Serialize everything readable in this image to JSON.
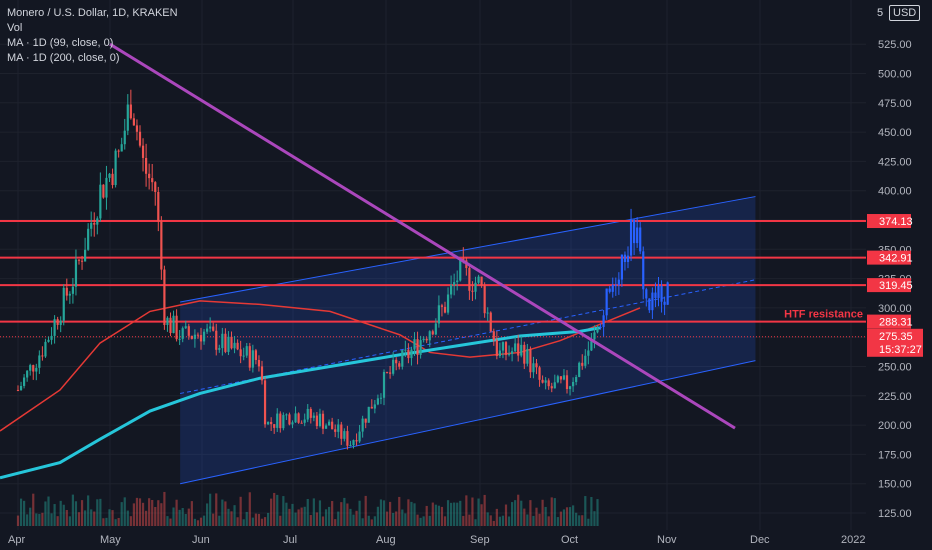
{
  "header": {
    "symbol_line": "Monero / U.S. Dollar, 1D, KRAKEN",
    "indicators": [
      "Vol",
      "MA · 1D (99, close, 0)",
      "MA · 1D (200, close, 0)"
    ]
  },
  "currency_button": "USD",
  "currency_cut_label": "5",
  "colors": {
    "background": "#131722",
    "up": "#26a69a",
    "down": "#ef5350",
    "projection": "#2962ff",
    "trendline": "#ab47bc",
    "ma99": "#e53935",
    "ma200": "#26c6da",
    "horizontal_levels": "#f23645",
    "channel": "#2962ff"
  },
  "chart_data": {
    "type": "candlestick",
    "symbol": "XMRUSD",
    "timeframe": "1D",
    "exchange": "KRAKEN",
    "x_ticks": [
      "Apr",
      "May",
      "Jun",
      "Jul",
      "Aug",
      "Sep",
      "Oct",
      "Nov",
      "Dec",
      "2022"
    ],
    "y_ticks": [
      125,
      150,
      175,
      200,
      225,
      250,
      275,
      300,
      325,
      350,
      375,
      400,
      425,
      450,
      475,
      500,
      525
    ],
    "y_tick_labels": [
      "125.00",
      "150.00",
      "175.00",
      "200.00",
      "225.00",
      "250.00",
      "",
      "300.00",
      "325.00",
      "350.00",
      "",
      "400.00",
      "425.00",
      "450.00",
      "475.00",
      "500.00",
      "525.00"
    ],
    "ylim": [
      112,
      552
    ],
    "price_series_approx": [
      {
        "t": "Apr 01",
        "close": 230
      },
      {
        "t": "Apr 10",
        "close": 270
      },
      {
        "t": "Apr 20",
        "close": 330
      },
      {
        "t": "Apr 28",
        "close": 400
      },
      {
        "t": "May 04",
        "close": 430
      },
      {
        "t": "May 08",
        "close": 480
      },
      {
        "t": "May 12",
        "close": 420
      },
      {
        "t": "May 16",
        "close": 400
      },
      {
        "t": "May 19",
        "close": 290
      },
      {
        "t": "May 25",
        "close": 275
      },
      {
        "t": "Jun 01",
        "close": 280
      },
      {
        "t": "Jun 10",
        "close": 265
      },
      {
        "t": "Jun 20",
        "close": 255
      },
      {
        "t": "Jun 22",
        "close": 200
      },
      {
        "t": "Jul 01",
        "close": 210
      },
      {
        "t": "Jul 10",
        "close": 205
      },
      {
        "t": "Jul 20",
        "close": 185
      },
      {
        "t": "Aug 01",
        "close": 240
      },
      {
        "t": "Aug 10",
        "close": 265
      },
      {
        "t": "Aug 20",
        "close": 300
      },
      {
        "t": "Aug 25",
        "close": 330
      },
      {
        "t": "Sep 01",
        "close": 320
      },
      {
        "t": "Sep 07",
        "close": 260
      },
      {
        "t": "Sep 15",
        "close": 265
      },
      {
        "t": "Sep 22",
        "close": 230
      },
      {
        "t": "Sep 30",
        "close": 235
      },
      {
        "t": "Oct 08",
        "close": 270
      },
      {
        "t": "Oct 12",
        "close": 300
      },
      {
        "t": "Oct 18",
        "close": 345
      },
      {
        "t": "Oct 22",
        "close": 370
      },
      {
        "t": "Oct 26",
        "close": 300
      },
      {
        "t": "Oct 30",
        "close": 310
      },
      {
        "t": "Nov 02",
        "close": 320
      }
    ],
    "projection_start": "Oct 10",
    "moving_averages": [
      {
        "name": "MA · 1D (99, close, 0)",
        "points": [
          [
            0,
            195
          ],
          [
            60,
            230
          ],
          [
            100,
            270
          ],
          [
            150,
            297
          ],
          [
            200,
            306
          ],
          [
            260,
            303
          ],
          [
            330,
            297
          ],
          [
            400,
            277
          ],
          [
            430,
            262
          ],
          [
            470,
            258
          ],
          [
            520,
            262
          ],
          [
            560,
            272
          ],
          [
            640,
            300
          ]
        ]
      },
      {
        "name": "MA · 1D (200, close, 0)",
        "points": [
          [
            0,
            155
          ],
          [
            60,
            168
          ],
          [
            100,
            188
          ],
          [
            150,
            212
          ],
          [
            200,
            227
          ],
          [
            260,
            240
          ],
          [
            330,
            250
          ],
          [
            400,
            260
          ],
          [
            460,
            268
          ],
          [
            520,
            276
          ],
          [
            580,
            280
          ],
          [
            600,
            283
          ]
        ]
      }
    ],
    "horizontal_levels": [
      {
        "value": 374.13,
        "label": "374.13"
      },
      {
        "value": 342.91,
        "label": "342.91"
      },
      {
        "value": 319.45,
        "label": "319.45"
      },
      {
        "value": 288.31,
        "label": "288.31",
        "annotation": "HTF resistance"
      }
    ],
    "price_marker": {
      "price": "275.35",
      "countdown": "15:37:27",
      "color": "#f23645"
    },
    "descending_trendline": {
      "from": {
        "t": "May 01",
        "price": 525
      },
      "to": {
        "t": "Dec 01",
        "price": 200
      }
    },
    "channel": {
      "upper": {
        "from": {
          "t": "May 24",
          "price": 305
        },
        "to": {
          "t": "Nov 30",
          "price": 395
        }
      },
      "lower": {
        "from": {
          "t": "May 24",
          "price": 150
        },
        "to": {
          "t": "Nov 30",
          "price": 255
        }
      },
      "mid_dashed": {
        "from": {
          "t": "May 24",
          "price": 227
        },
        "to": {
          "t": "Nov 30",
          "price": 324
        }
      }
    }
  }
}
